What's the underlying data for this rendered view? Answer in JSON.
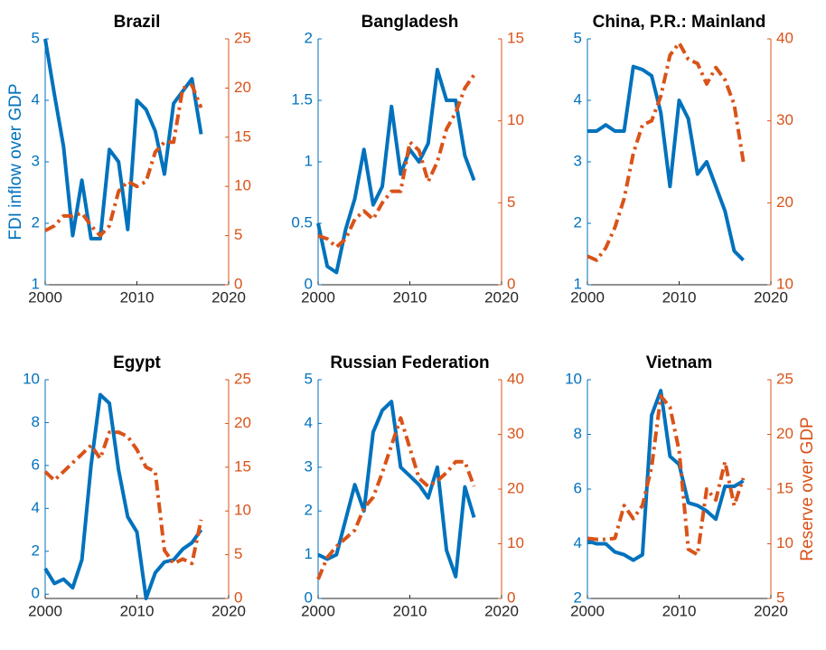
{
  "chart_data": [
    {
      "type": "line",
      "title": "Brazil",
      "ylabel": "FDI inflow over GDP",
      "x": [
        2000,
        2001,
        2002,
        2003,
        2004,
        2005,
        2006,
        2007,
        2008,
        2009,
        2010,
        2011,
        2012,
        2013,
        2014,
        2015,
        2016,
        2017
      ],
      "xlim": [
        2000,
        2020
      ],
      "xticks": [
        2000,
        2010,
        2020
      ],
      "ylim": [
        1,
        5
      ],
      "yticks": [
        1,
        2,
        3,
        4,
        5
      ],
      "y2lim": [
        0,
        25
      ],
      "y2ticks": [
        0,
        5,
        10,
        15,
        20,
        25
      ],
      "series": [
        {
          "color": "#0072BD",
          "values": [
            5.0,
            4.1,
            3.25,
            1.8,
            2.7,
            1.75,
            1.75,
            3.2,
            3.0,
            1.9,
            4.0,
            3.85,
            3.5,
            2.8,
            3.95,
            4.15,
            4.35,
            3.45
          ]
        },
        {
          "color": "#D95319",
          "axis": "y2",
          "values": [
            5.5,
            6,
            7,
            7,
            7.3,
            6,
            5,
            6,
            9.5,
            10.5,
            10,
            10.5,
            13.5,
            14.5,
            14.5,
            20,
            20.3,
            18
          ]
        }
      ]
    },
    {
      "type": "line",
      "title": "Bangladesh",
      "x": [
        2000,
        2001,
        2002,
        2003,
        2004,
        2005,
        2006,
        2007,
        2008,
        2009,
        2010,
        2011,
        2012,
        2013,
        2014,
        2015,
        2016,
        2017
      ],
      "xlim": [
        2000,
        2020
      ],
      "xticks": [
        2000,
        2010,
        2020
      ],
      "ylim": [
        0,
        2
      ],
      "yticks": [
        0,
        0.5,
        1,
        1.5,
        2
      ],
      "y2lim": [
        0,
        15
      ],
      "y2ticks": [
        0,
        5,
        10,
        15
      ],
      "series": [
        {
          "color": "#0072BD",
          "values": [
            0.5,
            0.15,
            0.1,
            0.45,
            0.7,
            1.1,
            0.65,
            0.8,
            1.45,
            0.9,
            1.1,
            1.0,
            1.15,
            1.75,
            1.5,
            1.5,
            1.05,
            0.85
          ]
        },
        {
          "color": "#D95319",
          "axis": "y2",
          "values": [
            3,
            2.8,
            2.3,
            2.8,
            4,
            4.5,
            4,
            5,
            5.7,
            5.7,
            8.7,
            8.2,
            6.3,
            7.5,
            9.5,
            10.5,
            12,
            12.8
          ]
        }
      ]
    },
    {
      "type": "line",
      "title": "China, P.R.: Mainland",
      "x": [
        2000,
        2001,
        2002,
        2003,
        2004,
        2005,
        2006,
        2007,
        2008,
        2009,
        2010,
        2011,
        2012,
        2013,
        2014,
        2015,
        2016,
        2017
      ],
      "xlim": [
        2000,
        2020
      ],
      "xticks": [
        2000,
        2010,
        2020
      ],
      "ylim": [
        1,
        5
      ],
      "yticks": [
        1,
        2,
        3,
        4,
        5
      ],
      "y2lim": [
        10,
        40
      ],
      "y2ticks": [
        10,
        20,
        30,
        40
      ],
      "series": [
        {
          "color": "#0072BD",
          "values": [
            3.5,
            3.5,
            3.6,
            3.5,
            3.5,
            4.55,
            4.5,
            4.4,
            3.8,
            2.6,
            4.0,
            3.7,
            2.8,
            3.0,
            2.6,
            2.2,
            1.55,
            1.4
          ]
        },
        {
          "color": "#D95319",
          "axis": "y2",
          "values": [
            13.5,
            13,
            14.5,
            17,
            20.5,
            26,
            29.5,
            30,
            33,
            38,
            39.5,
            37.5,
            37,
            34.5,
            36.5,
            35,
            32,
            25
          ]
        }
      ]
    },
    {
      "type": "line",
      "title": "Egypt",
      "x": [
        2000,
        2001,
        2002,
        2003,
        2004,
        2005,
        2006,
        2007,
        2008,
        2009,
        2010,
        2011,
        2012,
        2013,
        2014,
        2015,
        2016,
        2017
      ],
      "xlim": [
        2000,
        2020
      ],
      "xticks": [
        2000,
        2010,
        2020
      ],
      "ylim": [
        -0.2,
        10
      ],
      "yticks": [
        0,
        2,
        4,
        6,
        8,
        10
      ],
      "y2lim": [
        0,
        25
      ],
      "y2ticks": [
        0,
        5,
        10,
        15,
        20,
        25
      ],
      "series": [
        {
          "color": "#0072BD",
          "values": [
            1.2,
            0.5,
            0.7,
            0.3,
            1.6,
            6.0,
            9.3,
            8.9,
            5.8,
            3.6,
            2.9,
            -0.2,
            1.0,
            1.5,
            1.6,
            2.1,
            2.4,
            3.0
          ]
        },
        {
          "color": "#D95319",
          "axis": "y2",
          "values": [
            14.5,
            13.5,
            14.5,
            15.5,
            16.5,
            17.5,
            16,
            19,
            19,
            18.5,
            17,
            15,
            14.5,
            5.5,
            4,
            4.5,
            4,
            9
          ]
        }
      ]
    },
    {
      "type": "line",
      "title": "Russian Federation",
      "x": [
        2000,
        2001,
        2002,
        2003,
        2004,
        2005,
        2006,
        2007,
        2008,
        2009,
        2010,
        2011,
        2012,
        2013,
        2014,
        2015,
        2016,
        2017
      ],
      "xlim": [
        2000,
        2020
      ],
      "xticks": [
        2000,
        2010,
        2020
      ],
      "ylim": [
        0,
        5
      ],
      "yticks": [
        0,
        1,
        2,
        3,
        4,
        5
      ],
      "y2lim": [
        0,
        40
      ],
      "y2ticks": [
        0,
        10,
        20,
        30,
        40
      ],
      "series": [
        {
          "color": "#0072BD",
          "values": [
            1.0,
            0.9,
            1.0,
            1.8,
            2.6,
            2.0,
            3.8,
            4.3,
            4.5,
            3.0,
            2.8,
            2.6,
            2.3,
            3.0,
            1.1,
            0.5,
            2.55,
            1.85
          ]
        },
        {
          "color": "#D95319",
          "axis": "y2",
          "values": [
            3.5,
            7.5,
            9.5,
            11,
            12.5,
            16.5,
            18.5,
            23,
            28,
            33,
            27.5,
            22,
            20.5,
            21.5,
            23,
            25,
            25,
            20.5
          ]
        }
      ]
    },
    {
      "type": "line",
      "title": "Vietnam",
      "y2label": "Reserve over GDP",
      "x": [
        2000,
        2001,
        2002,
        2003,
        2004,
        2005,
        2006,
        2007,
        2008,
        2009,
        2010,
        2011,
        2012,
        2013,
        2014,
        2015,
        2016,
        2017
      ],
      "xlim": [
        2000,
        2020
      ],
      "xticks": [
        2000,
        2010,
        2020
      ],
      "ylim": [
        2,
        10
      ],
      "yticks": [
        2,
        4,
        6,
        8,
        10
      ],
      "y2lim": [
        5,
        25
      ],
      "y2ticks": [
        5,
        10,
        15,
        20,
        25
      ],
      "series": [
        {
          "color": "#0072BD",
          "values": [
            4.1,
            4.0,
            4.0,
            3.7,
            3.6,
            3.4,
            3.6,
            8.7,
            9.6,
            7.2,
            6.9,
            5.5,
            5.4,
            5.2,
            4.9,
            6.1,
            6.1,
            6.3
          ]
        },
        {
          "color": "#D95319",
          "axis": "y2",
          "values": [
            10.5,
            10.4,
            10.4,
            10.5,
            13.5,
            12.3,
            13.5,
            17,
            23.5,
            22.5,
            18.5,
            9.5,
            9.0,
            15,
            14,
            17.5,
            13.5,
            16
          ]
        }
      ]
    }
  ]
}
